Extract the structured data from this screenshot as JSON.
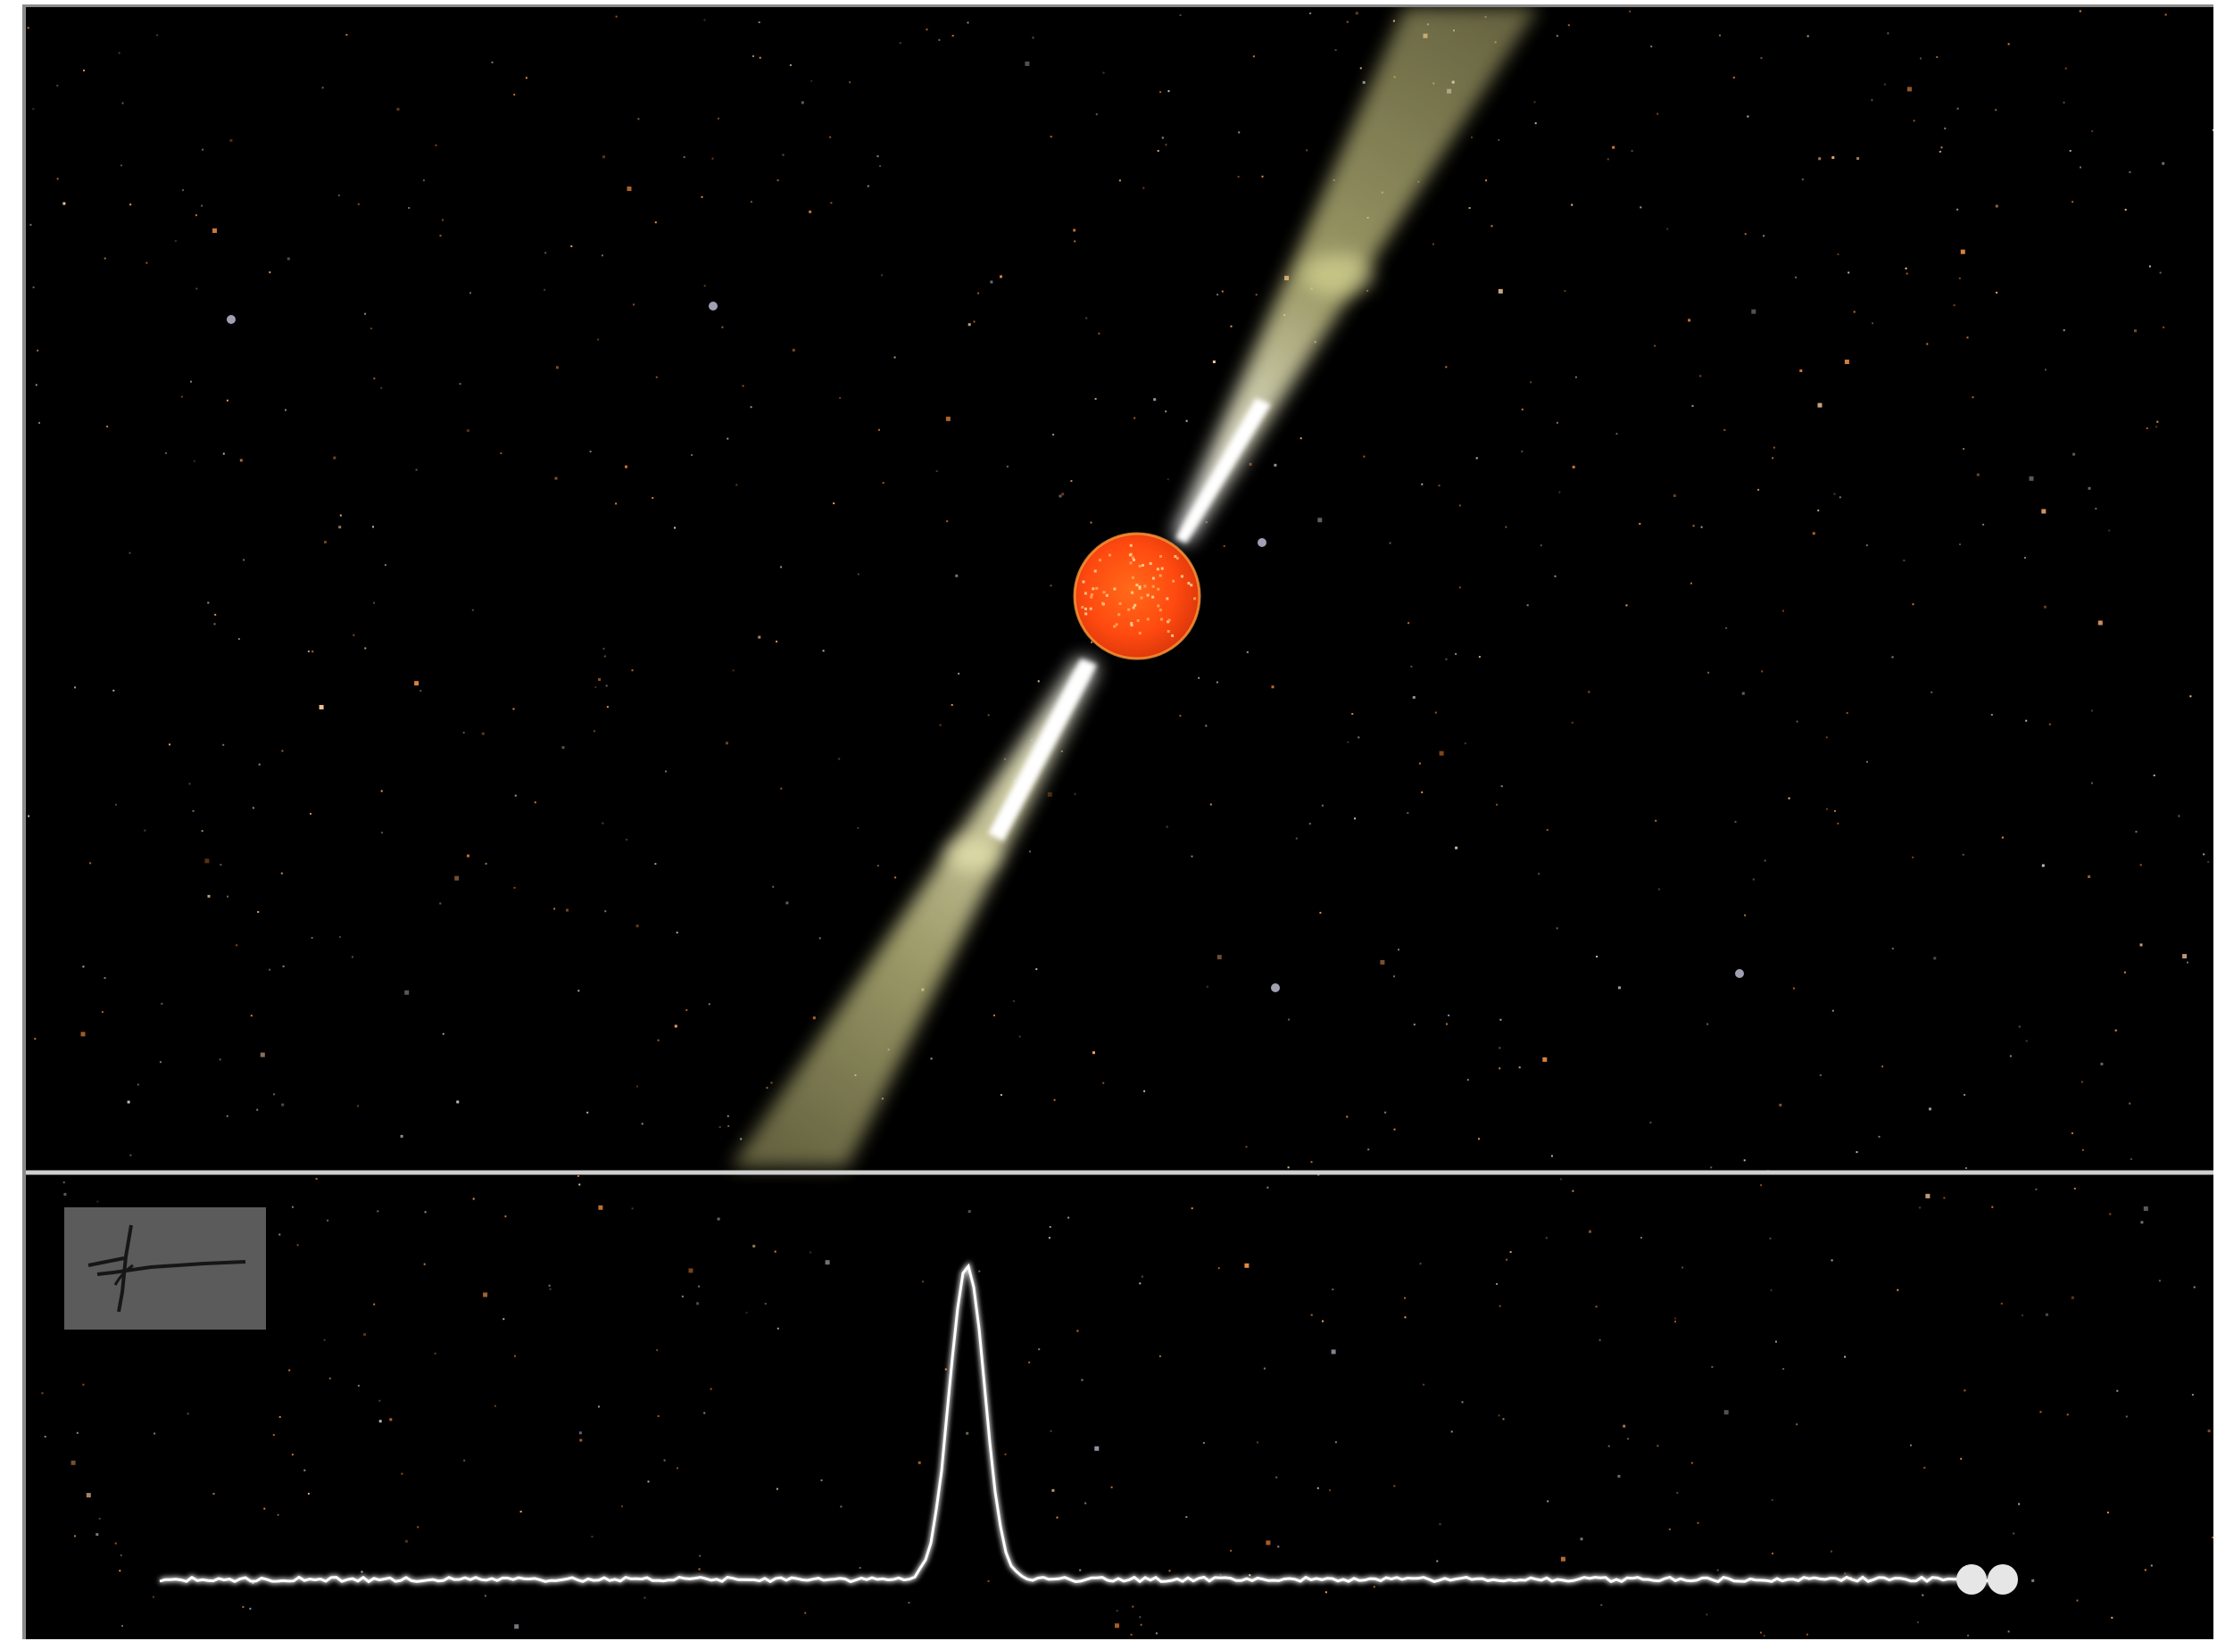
{
  "scene": {
    "subject": "pulsar",
    "panels": [
      "pulsar-with-beams",
      "pulse-profile"
    ],
    "colors": {
      "background": "#000000",
      "star_core": "#ff4a10",
      "star_edge": "#ff8a2a",
      "beam": "#f2f0a8",
      "beam_core": "#ffffff",
      "divider": "#cfcfcf",
      "trace": "#f4f4f4",
      "icon_box": "#5b5b5b"
    },
    "icons": {
      "toggle": "pulse-waveform-icon"
    },
    "pulse_profile": {
      "baseline_level": 0.0,
      "peak_level": 1.0,
      "peak_position": 0.44,
      "trace_end_position": 0.9
    }
  }
}
